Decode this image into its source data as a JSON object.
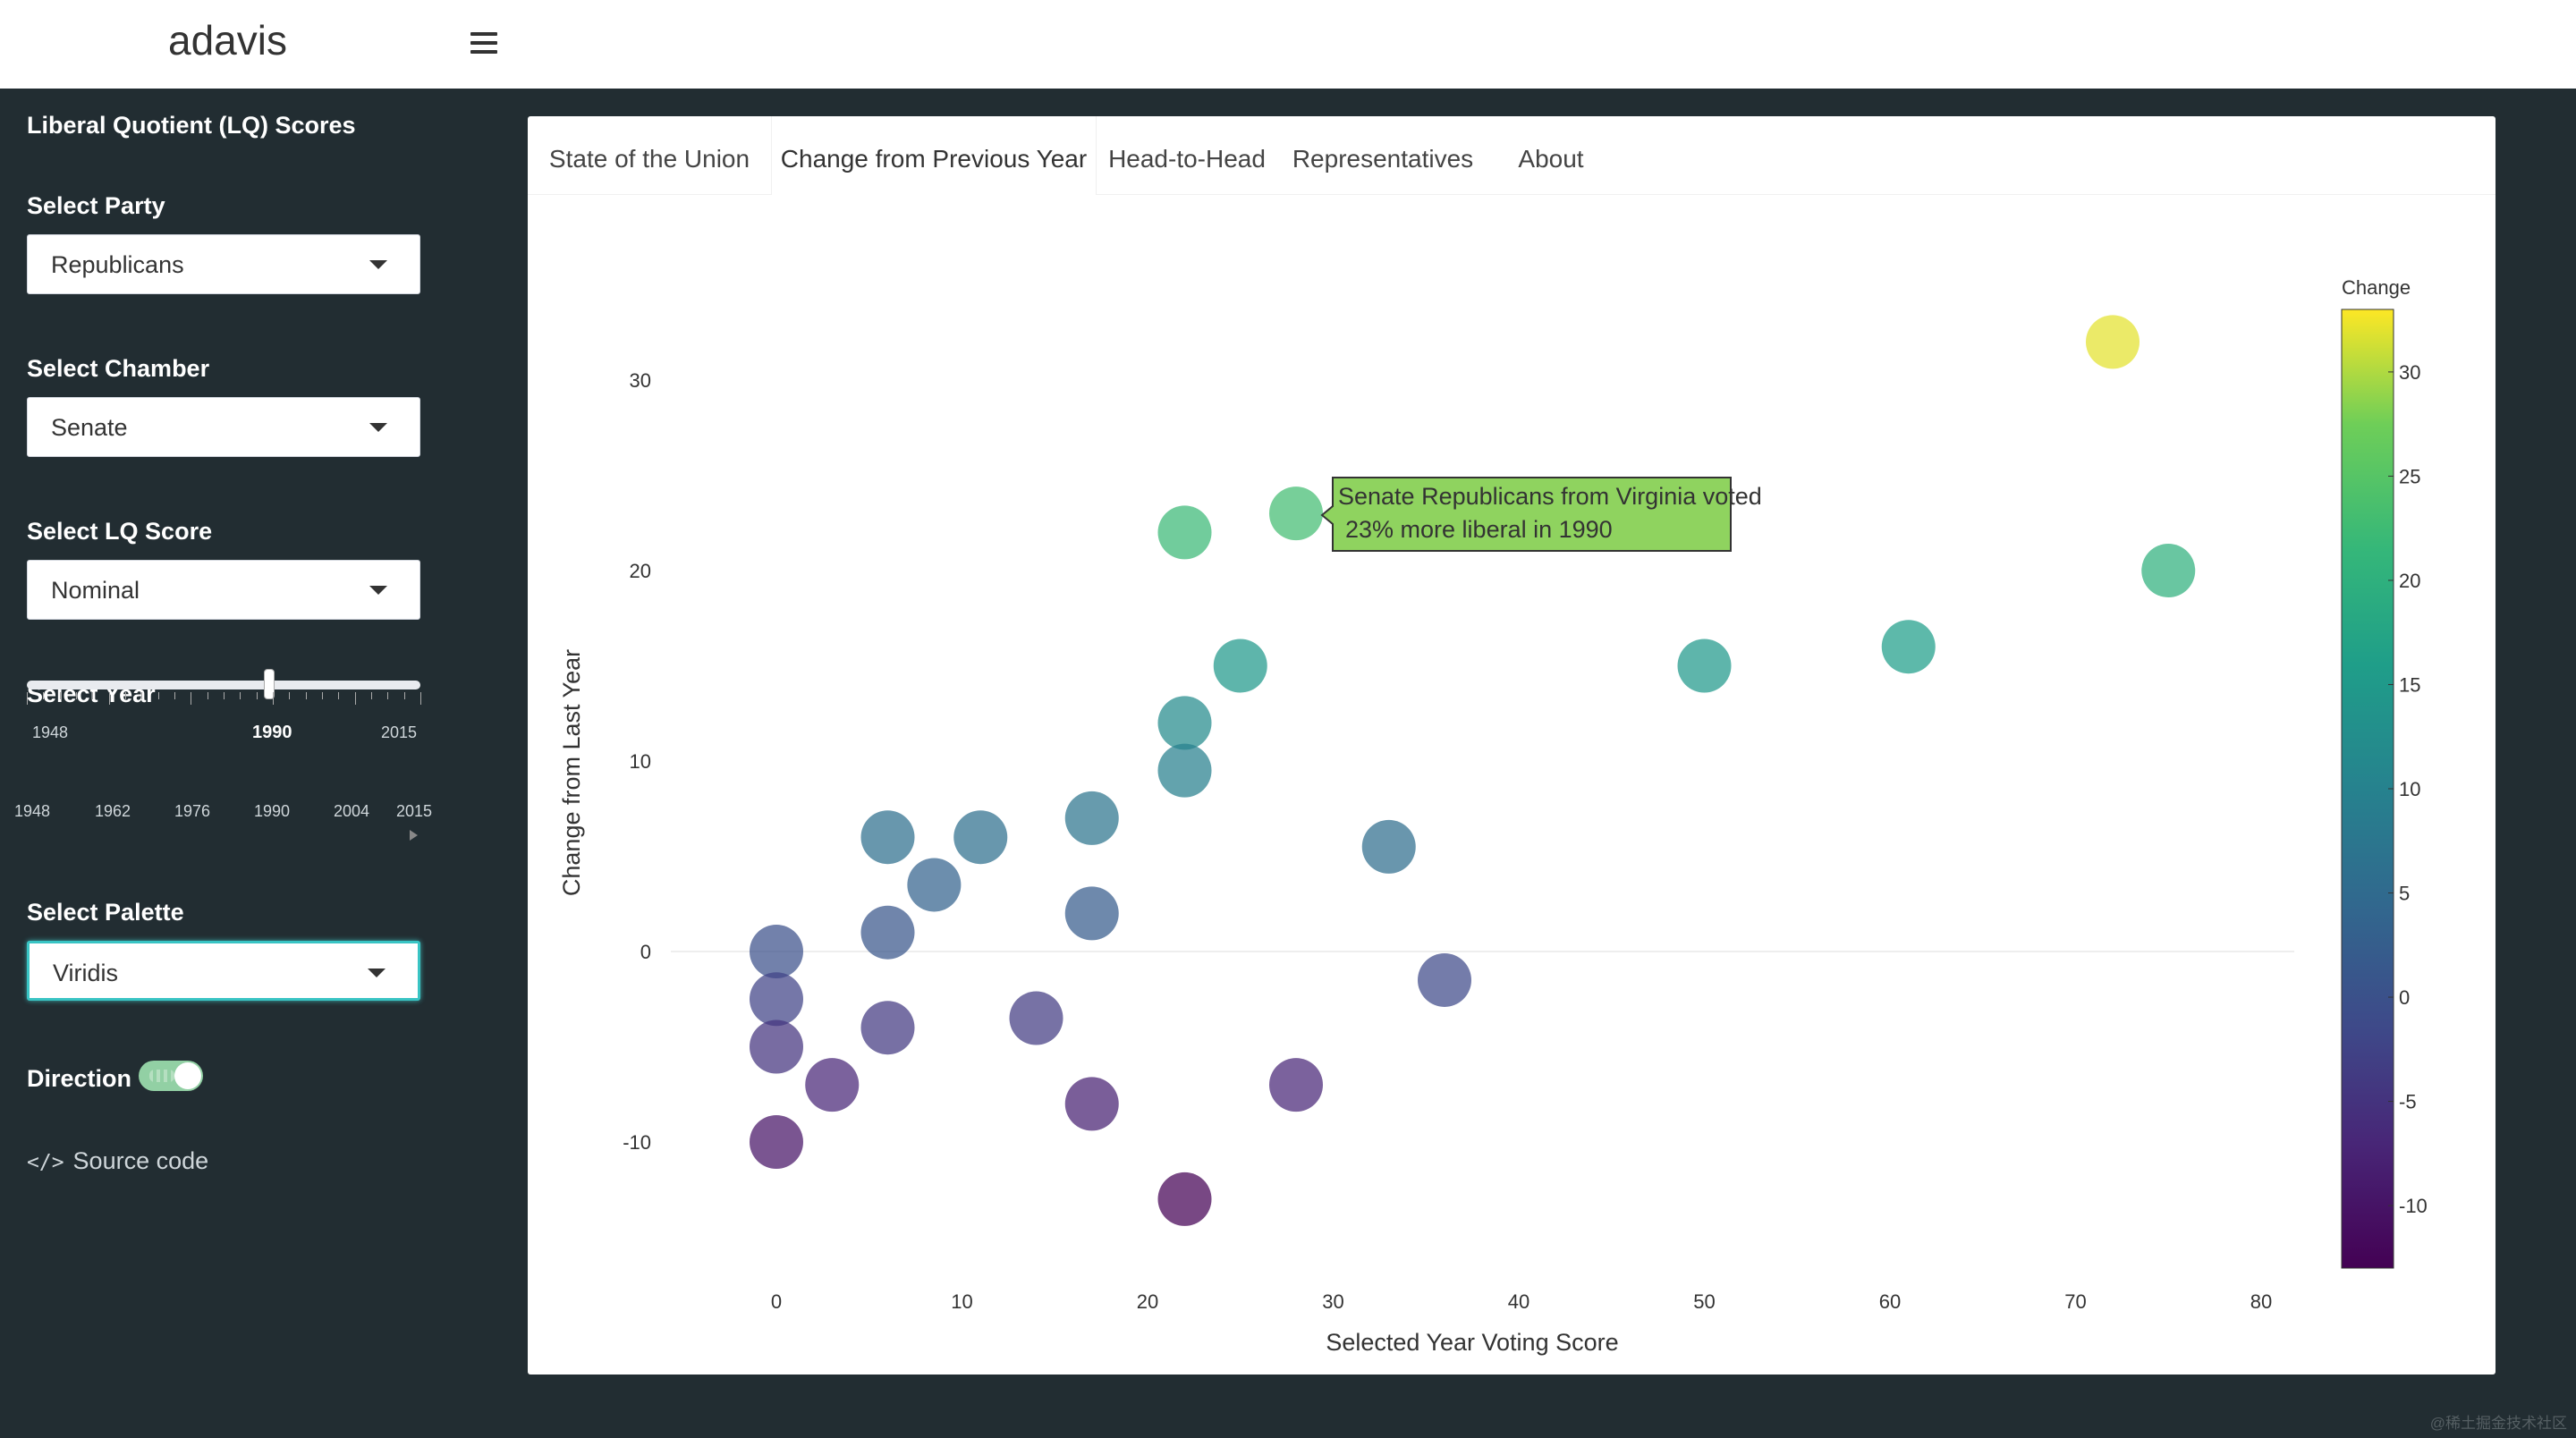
{
  "app": {
    "brand": "adavis"
  },
  "sidebar": {
    "title": "Liberal Quotient (LQ) Scores",
    "party": {
      "label": "Select Party",
      "value": "Republicans"
    },
    "chamber": {
      "label": "Select Chamber",
      "value": "Senate"
    },
    "lq_score": {
      "label": "Select LQ Score",
      "value": "Nominal"
    },
    "year": {
      "label": "Select Year",
      "min": "1948",
      "max": "2015",
      "value": "1990",
      "tick_labels": [
        "1948",
        "1962",
        "1976",
        "1990",
        "2004",
        "2015"
      ]
    },
    "palette": {
      "label": "Select Palette",
      "value": "Viridis"
    },
    "direction": {
      "label": "Direction",
      "on": true
    },
    "source_link": {
      "icon": "code-icon",
      "label": "Source code"
    }
  },
  "tabs": [
    {
      "label": "State of the Union",
      "active": false
    },
    {
      "label": "Change from Previous Year",
      "active": true
    },
    {
      "label": "Head-to-Head",
      "active": false
    },
    {
      "label": "Representatives",
      "active": false
    },
    {
      "label": "About",
      "active": false
    }
  ],
  "tooltip": {
    "line1": "Senate Republicans from Virginia voted",
    "line2": "23% more liberal in 1990",
    "color": "#8fd35f"
  },
  "chart_data": {
    "type": "scatter",
    "xlabel": "Selected Year Voting Score",
    "ylabel": "Change from Last Year",
    "xlim": [
      -10,
      82
    ],
    "ylim": [
      -16,
      36
    ],
    "xticks": [
      0,
      10,
      20,
      30,
      40,
      50,
      60,
      70,
      80
    ],
    "yticks": [
      -10,
      0,
      10,
      20,
      30
    ],
    "color_variable": "Change",
    "colorbar": {
      "title": "Change",
      "ticks": [
        -10,
        -5,
        0,
        5,
        10,
        15,
        20,
        25,
        30
      ],
      "range": [
        -13,
        33
      ],
      "palette": "viridis"
    },
    "points": [
      {
        "x": 72,
        "y": 32
      },
      {
        "x": 75,
        "y": 20
      },
      {
        "x": 61,
        "y": 16
      },
      {
        "x": 50,
        "y": 15
      },
      {
        "x": 28,
        "y": 23
      },
      {
        "x": 22,
        "y": 22
      },
      {
        "x": 25,
        "y": 15
      },
      {
        "x": 22,
        "y": 12
      },
      {
        "x": 22,
        "y": 9.5
      },
      {
        "x": 17,
        "y": 7
      },
      {
        "x": 11,
        "y": 6
      },
      {
        "x": 6,
        "y": 6
      },
      {
        "x": 8.5,
        "y": 3.5
      },
      {
        "x": 33,
        "y": 5.5
      },
      {
        "x": 17,
        "y": 2
      },
      {
        "x": 6,
        "y": 1
      },
      {
        "x": 0,
        "y": 0
      },
      {
        "x": 36,
        "y": -1.5
      },
      {
        "x": 0,
        "y": -2.5
      },
      {
        "x": 14,
        "y": -3.5
      },
      {
        "x": 6,
        "y": -4
      },
      {
        "x": 0,
        "y": -5
      },
      {
        "x": 3,
        "y": -7
      },
      {
        "x": 28,
        "y": -7
      },
      {
        "x": 17,
        "y": -8
      },
      {
        "x": 0,
        "y": -10
      },
      {
        "x": 22,
        "y": -13
      }
    ]
  },
  "watermark": "@稀土掘金技术社区"
}
